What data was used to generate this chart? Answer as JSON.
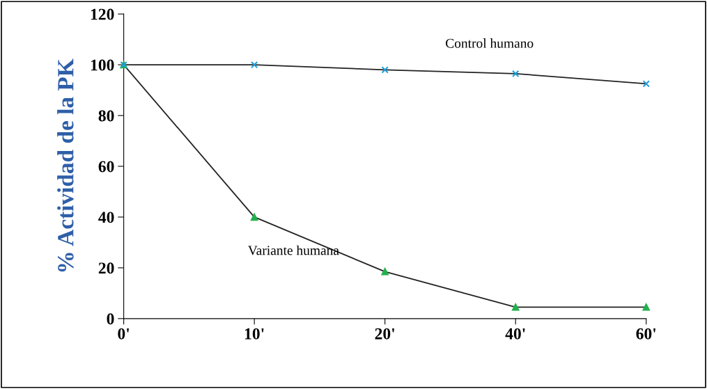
{
  "chart_data": {
    "type": "line",
    "ylabel": "% Actividad de la PK",
    "categories": [
      "0'",
      "10'",
      "20'",
      "40'",
      "60'"
    ],
    "series": [
      {
        "name": "Control humano",
        "color": "#1e9fd8",
        "marker": "cross",
        "values": [
          100,
          100,
          98,
          96.5,
          92.5
        ]
      },
      {
        "name": "Variante humana",
        "color": "#22b14c",
        "marker": "triangle",
        "values": [
          100,
          40,
          18.5,
          4.5,
          4.5
        ]
      }
    ],
    "ylim": [
      0,
      120
    ],
    "yticks": [
      0,
      20,
      40,
      60,
      80,
      100,
      120
    ],
    "grid": false,
    "legend": false,
    "line_style": "solid"
  }
}
